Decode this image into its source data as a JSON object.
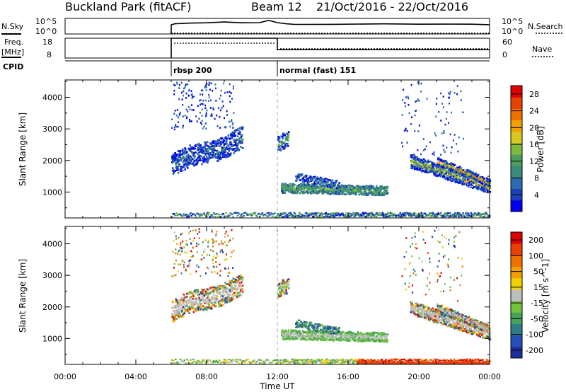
{
  "header": {
    "station": "Buckland Park (fitACF)",
    "beam": "Beam 12",
    "dates": "21/Oct/2016 - 22/Oct/2016"
  },
  "chart_data": [
    {
      "type": "line",
      "panel": "noise",
      "ylabel_left": "N.Sky",
      "ylabel_right": "N.Search",
      "ticks_left": [
        "10^5",
        "10^0"
      ],
      "ticks_right": [
        "10^5",
        "10^0"
      ],
      "x_hours": [
        6.0,
        6.2,
        7.0,
        7.5,
        8.0,
        9.0,
        10.0,
        11.0,
        11.5,
        12.0,
        12.5,
        13.0,
        15.0,
        18.0,
        20.0,
        22.0,
        23.0,
        24.0
      ],
      "n_sky": [
        0.55,
        0.62,
        0.7,
        0.72,
        0.75,
        0.74,
        0.72,
        0.73,
        0.88,
        0.75,
        0.62,
        0.63,
        0.65,
        0.62,
        0.64,
        0.63,
        0.62,
        0.63
      ],
      "n_search": [
        0.05,
        0.05,
        0.05,
        0.05,
        0.05,
        0.05,
        0.05,
        0.05,
        0.05,
        0.05,
        0.05,
        0.05,
        0.05,
        0.05,
        0.05,
        0.05,
        0.05,
        0.05
      ]
    },
    {
      "type": "line",
      "panel": "frequency",
      "ylabel_left": "Freq. [MHz]",
      "ylabel_right": "Nave",
      "ticks_left": [
        "18",
        "8"
      ],
      "ticks_right": [
        "60",
        "0"
      ],
      "ylim_left": [
        8,
        18
      ],
      "ylim_right": [
        0,
        60
      ],
      "freq_segments": [
        {
          "x0": 6.0,
          "x1": 12.0,
          "value": 18
        },
        {
          "x0": 12.0,
          "x1": 24.0,
          "value": 12.2
        }
      ],
      "nave_segments": [
        {
          "x0": 6.0,
          "x1": 12.0,
          "value": 45
        },
        {
          "x0": 12.0,
          "x1": 24.0,
          "value": 28
        }
      ]
    },
    {
      "type": "annotation",
      "panel": "cpid",
      "label": "CPID",
      "modes": [
        {
          "start_hour": 6.0,
          "text": "rbsp 200"
        },
        {
          "start_hour": 12.0,
          "text": "normal (fast) 151"
        }
      ]
    },
    {
      "type": "heatmap",
      "panel": "power",
      "ylabel": "Slant Range [km]",
      "ylim": [
        180,
        4550
      ],
      "yticks": [
        1000,
        2000,
        3000,
        4000
      ],
      "colorbar_label": "Power [dB]",
      "colorbar_ticks": [
        4,
        8,
        12,
        16,
        20,
        24,
        28
      ],
      "colors": [
        "#0000ee",
        "#1b40b8",
        "#2d6bb0",
        "#3c8a7a",
        "#4a9e5a",
        "#7cbb3c",
        "#d8c820",
        "#f4a000",
        "#f07000",
        "#e84000",
        "#e00000"
      ]
    },
    {
      "type": "heatmap",
      "panel": "velocity",
      "ylabel": "Slant Range [km]",
      "ylim": [
        180,
        4550
      ],
      "yticks": [
        1000,
        2000,
        3000,
        4000
      ],
      "colorbar_label": "Velocity [m s^-1]",
      "colorbar_ticks": [
        200,
        100,
        50,
        15,
        -15,
        -50,
        -100,
        -200
      ],
      "colors": [
        "#1c2f9c",
        "#2850b8",
        "#2f7c86",
        "#47a35a",
        "#72c43c",
        "#bebebe",
        "#f2d000",
        "#f2a000",
        "#f07000",
        "#e84000",
        "#e00000"
      ]
    }
  ],
  "x_axis": {
    "label": "Time UT",
    "ticks": [
      "00:00",
      "04:00",
      "08:00",
      "12:00",
      "16:00",
      "20:00",
      "00:00"
    ]
  }
}
